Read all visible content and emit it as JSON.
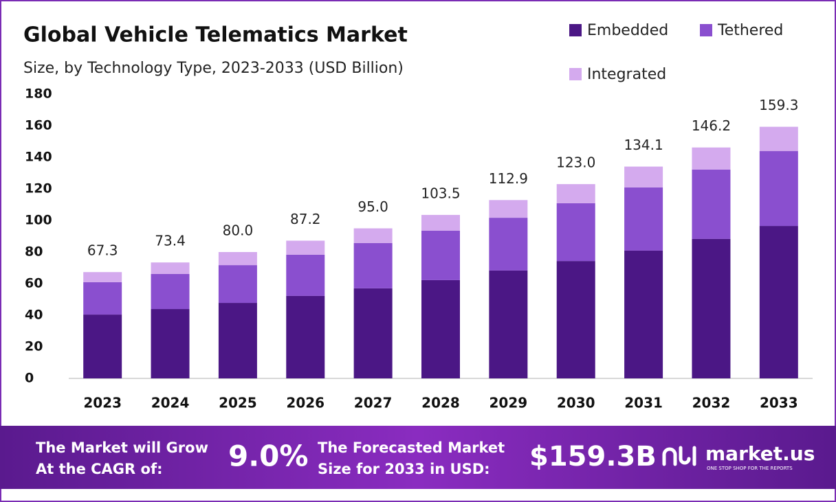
{
  "chart_data": {
    "type": "stacked_bar",
    "title": "Global Vehicle Telematics Market",
    "subtitle": "Size, by Technology Type, 2023-2033 (USD Billion)",
    "categories": [
      "2023",
      "2024",
      "2025",
      "2026",
      "2027",
      "2028",
      "2029",
      "2030",
      "2031",
      "2032",
      "2033"
    ],
    "series": [
      {
        "name": "Embedded",
        "color": "#4b1785",
        "values": [
          40.4,
          43.9,
          47.8,
          52.2,
          57.0,
          62.2,
          68.3,
          74.3,
          80.9,
          88.3,
          96.5
        ]
      },
      {
        "name": "Tethered",
        "color": "#8a4fcf",
        "values": [
          20.5,
          22.2,
          23.9,
          26.1,
          28.7,
          31.3,
          33.4,
          36.6,
          40.0,
          43.9,
          47.4
        ]
      },
      {
        "name": "Integrated",
        "color": "#d4aaee",
        "values": [
          6.4,
          7.3,
          8.3,
          8.9,
          9.3,
          10.0,
          11.2,
          12.1,
          13.2,
          14.0,
          15.4
        ]
      }
    ],
    "totals": {
      "values": [
        67.3,
        73.4,
        80.0,
        87.2,
        95.0,
        103.5,
        112.9,
        123.0,
        134.1,
        146.2,
        159.3
      ],
      "value_labels": [
        "67.3",
        "73.4",
        "80.0",
        "87.2",
        "95.0",
        "103.5",
        "112.9",
        "123.0",
        "134.1",
        "146.2",
        "159.3"
      ]
    },
    "ylim": [
      0,
      180
    ],
    "yticks": [
      0,
      20,
      40,
      60,
      80,
      100,
      120,
      140,
      160,
      180
    ],
    "grid": false
  },
  "footer": {
    "cagr_text": [
      "The Market will Grow",
      "At the CAGR of:"
    ],
    "cagr_value": "9.0%",
    "forecast_text": [
      "The Forecasted Market",
      "Size for 2033 in USD:"
    ],
    "forecast_value": "$159.3B",
    "brand": "market.us",
    "tagline": "ONE STOP SHOP FOR THE REPORTS"
  }
}
